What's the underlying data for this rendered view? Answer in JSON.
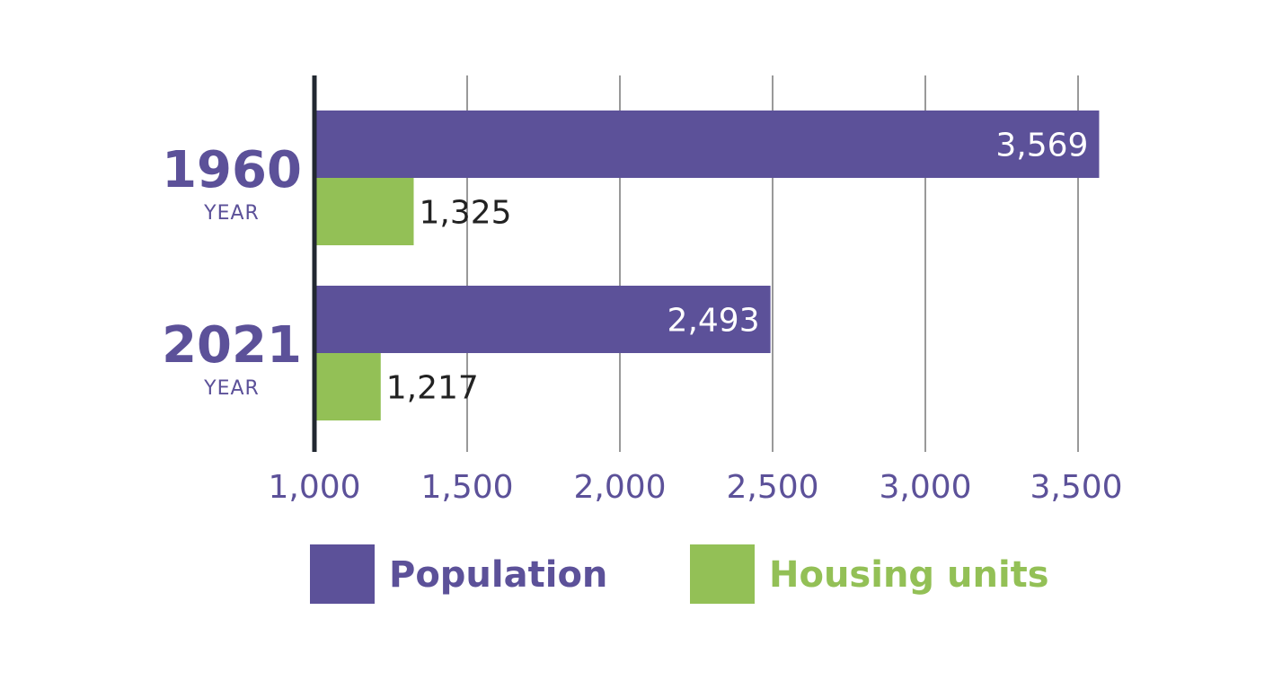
{
  "chart_data": {
    "type": "bar",
    "orientation": "horizontal",
    "categories": [
      "1960",
      "2021"
    ],
    "category_sublabel": "YEAR",
    "series": [
      {
        "name": "Population",
        "values": [
          3569,
          2493
        ],
        "value_labels": [
          "3,569",
          "2,493"
        ],
        "color": "#5c5199"
      },
      {
        "name": "Housing units",
        "values": [
          1325,
          1217
        ],
        "value_labels": [
          "1,325",
          "1,217"
        ],
        "color": "#93c056"
      }
    ],
    "xlim": [
      1000,
      3569
    ],
    "xticks": [
      1000,
      1500,
      2000,
      2500,
      3000,
      3500
    ],
    "xtick_labels": [
      "1,000",
      "1,500",
      "2,000",
      "2,500",
      "3,000",
      "3,500"
    ],
    "grid": true,
    "legend": "bottom",
    "title": "",
    "xlabel": "",
    "ylabel": ""
  },
  "colors": {
    "axis_text": "#5c5199",
    "grid": "#333333",
    "axis_line": "#222831",
    "dark_label": "#222222",
    "light_label": "#ffffff"
  }
}
